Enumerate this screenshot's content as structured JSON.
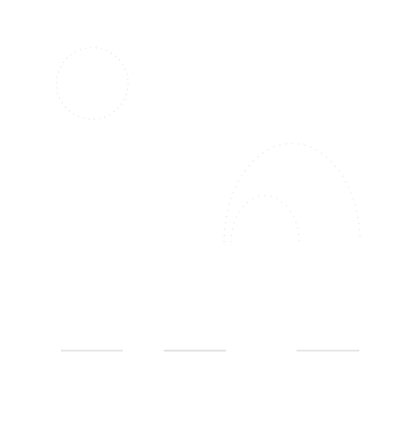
{
  "colors": {
    "background": "#ffffff",
    "dots": "#d9d9d9",
    "lines": "#c8c8c8"
  },
  "icons": {
    "sun": "sun-icon",
    "large_hill": "large-hill-icon",
    "small_hill": "small-hill-icon",
    "ground_lines": "ground-line-icon"
  }
}
